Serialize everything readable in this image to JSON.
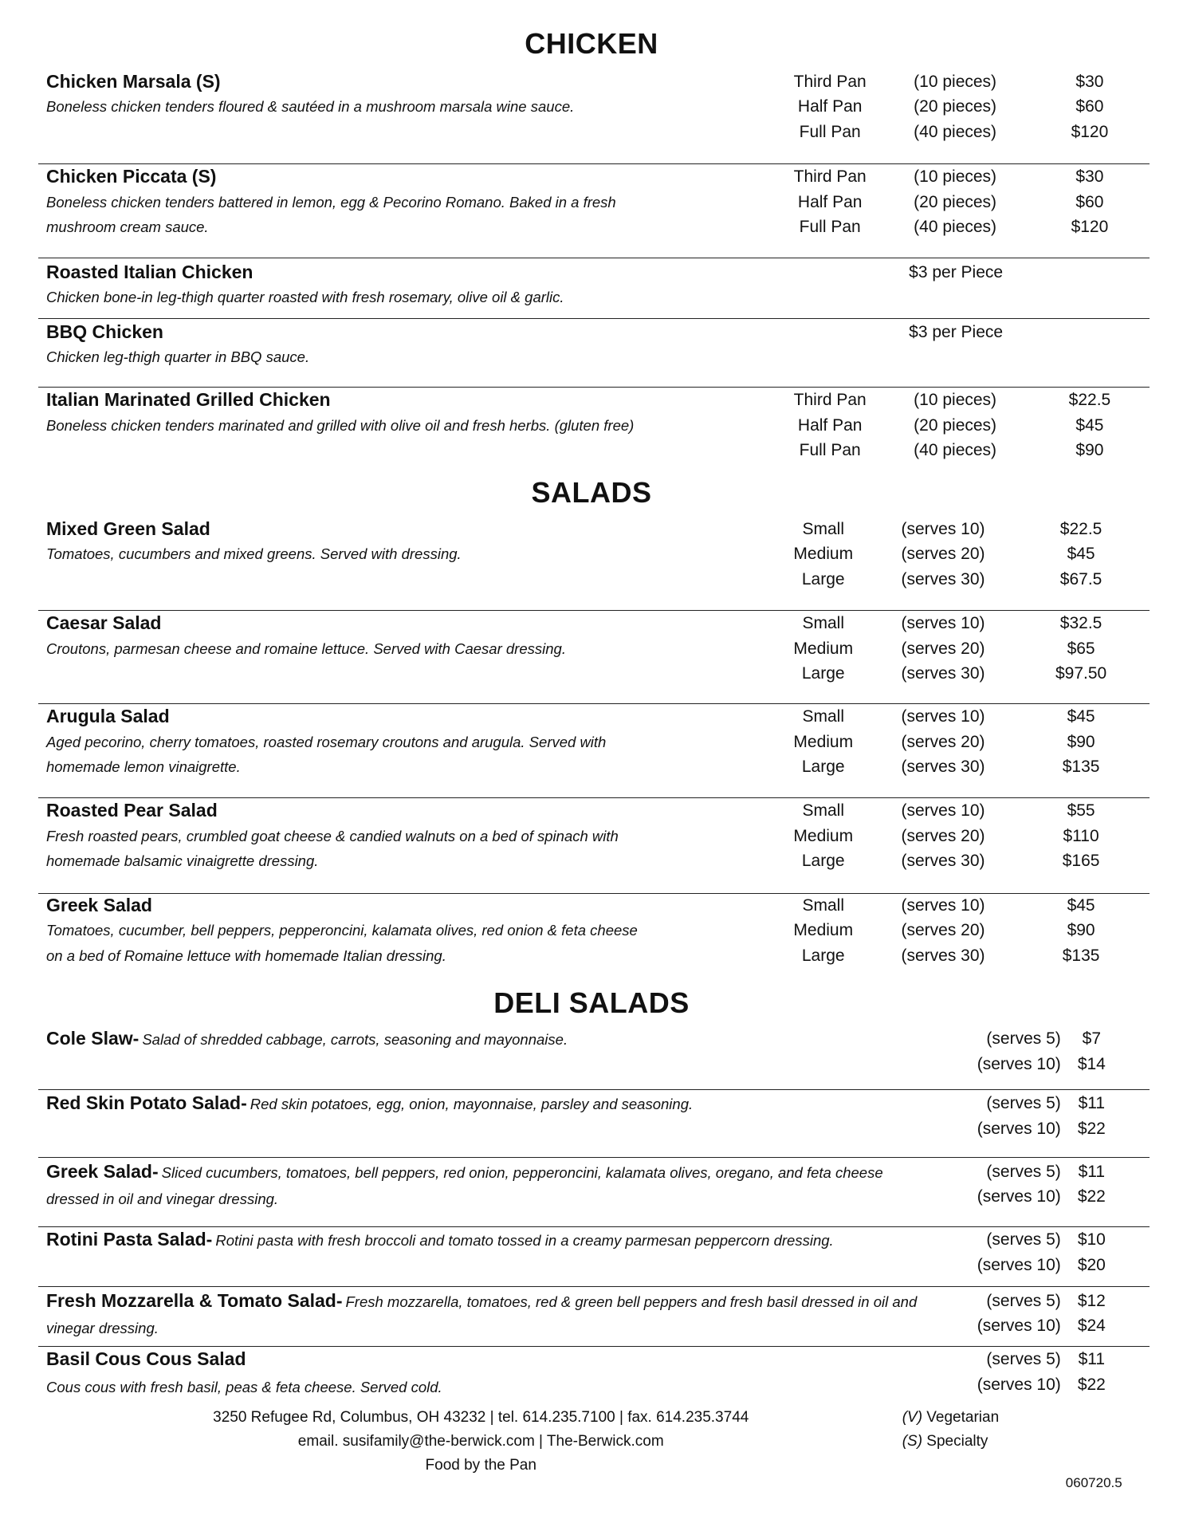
{
  "sections": [
    {
      "title": "CHICKEN",
      "items": [
        {
          "name": "Chicken Marsala (S)",
          "description": [
            "Boneless chicken tenders floured & sautéed in a mushroom marsala wine sauce."
          ],
          "sizes": [
            "Third Pan",
            "Half Pan",
            "Full Pan"
          ],
          "portions": [
            "(10 pieces)",
            "(20 pieces)",
            "(40 pieces)"
          ],
          "prices": [
            "$30",
            "$60",
            "$120"
          ]
        },
        {
          "name": "Chicken Piccata (S)",
          "description": [
            "Boneless chicken tenders battered in lemon, egg & Pecorino Romano.  Baked in a fresh",
            "mushroom cream sauce."
          ],
          "sizes": [
            "Third Pan",
            "Half Pan",
            "Full Pan"
          ],
          "portions": [
            "(10 pieces)",
            "(20 pieces)",
            "(40 pieces)"
          ],
          "prices": [
            "$30",
            "$60",
            "$120"
          ]
        },
        {
          "name": "Roasted Italian Chicken",
          "description": [
            "Chicken bone-in leg-thigh quarter roasted with fresh rosemary, olive oil & garlic."
          ],
          "flat_price": "$3 per Piece"
        },
        {
          "name": "BBQ Chicken",
          "description": [
            "Chicken leg-thigh quarter in BBQ sauce."
          ],
          "flat_price": "$3 per Piece"
        },
        {
          "name": "Italian Marinated Grilled Chicken",
          "description": [
            "Boneless chicken tenders marinated and grilled with olive oil and fresh herbs. (gluten free)"
          ],
          "sizes": [
            "Third Pan",
            "Half Pan",
            "Full Pan"
          ],
          "portions": [
            "(10 pieces)",
            "(20 pieces)",
            "(40 pieces)"
          ],
          "prices": [
            "$22.5",
            "$45",
            "$90"
          ]
        }
      ]
    },
    {
      "title": "SALADS",
      "items": [
        {
          "name": "Mixed Green Salad",
          "description": [
            "Tomatoes, cucumbers and mixed greens.  Served with dressing."
          ],
          "sizes": [
            "Small",
            "Medium",
            "Large"
          ],
          "portions": [
            "(serves 10)",
            "(serves 20)",
            "(serves 30)"
          ],
          "prices": [
            "$22.5",
            "$45",
            "$67.5"
          ]
        },
        {
          "name": "Caesar Salad",
          "description": [
            "Croutons, parmesan cheese and romaine lettuce.  Served with Caesar dressing."
          ],
          "sizes": [
            "Small",
            "Medium",
            "Large"
          ],
          "portions": [
            "(serves 10)",
            "(serves 20)",
            "(serves 30)"
          ],
          "prices": [
            "$32.5",
            "$65",
            "$97.50"
          ]
        },
        {
          "name": "Arugula Salad",
          "description": [
            "Aged pecorino, cherry tomatoes, roasted rosemary croutons and arugula. Served with",
            "homemade lemon vinaigrette."
          ],
          "sizes": [
            "Small",
            "Medium",
            "Large"
          ],
          "portions": [
            "(serves 10)",
            "(serves 20)",
            "(serves 30)"
          ],
          "prices": [
            "$45",
            "$90",
            "$135"
          ]
        },
        {
          "name": "Roasted Pear Salad",
          "description": [
            "Fresh roasted pears, crumbled goat cheese & candied walnuts on a bed of spinach with",
            "homemade balsamic vinaigrette dressing."
          ],
          "sizes": [
            "Small",
            "Medium",
            "Large"
          ],
          "portions": [
            "(serves 10)",
            "(serves 20)",
            "(serves 30)"
          ],
          "prices": [
            "$55",
            "$110",
            "$165"
          ]
        },
        {
          "name": "Greek Salad",
          "description": [
            "Tomatoes, cucumber, bell peppers, pepperoncini, kalamata olives, red onion & feta cheese",
            "on a bed of Romaine lettuce with homemade Italian dressing."
          ],
          "sizes": [
            "Small",
            "Medium",
            "Large"
          ],
          "portions": [
            "(serves 10)",
            "(serves 20)",
            "(serves 30)"
          ],
          "prices": [
            "$45",
            "$90",
            "$135"
          ]
        }
      ]
    },
    {
      "title": "DELI SALADS",
      "items": [
        {
          "name": "Cole Slaw-",
          "description": "Salad of shredded cabbage, carrots, seasoning and mayonnaise.",
          "portions": [
            "(serves 5)",
            "(serves 10)"
          ],
          "prices": [
            "$7",
            "$14"
          ]
        },
        {
          "name": "Red Skin Potato Salad-",
          "description": "Red skin potatoes, egg, onion, mayonnaise, parsley and seasoning.",
          "portions": [
            "(serves 5)",
            "(serves 10)"
          ],
          "prices": [
            "$11",
            "$22"
          ]
        },
        {
          "name": "Greek Salad-",
          "description": "Sliced cucumbers, tomatoes, bell peppers, red onion, pepperoncini, kalamata olives, oregano, and feta cheese dressed in oil and vinegar dressing.",
          "portions": [
            "(serves 5)",
            "(serves 10)"
          ],
          "prices": [
            "$11",
            "$22"
          ]
        },
        {
          "name": "Rotini Pasta Salad-",
          "description": "Rotini pasta with fresh broccoli and tomato tossed in a creamy parmesan peppercorn dressing.",
          "portions": [
            "(serves 5)",
            "(serves 10)"
          ],
          "prices": [
            "$10",
            "$20"
          ]
        },
        {
          "name": "Fresh Mozzarella & Tomato Salad-",
          "description": "Fresh mozzarella, tomatoes, red & green bell peppers and fresh basil dressed in oil and vinegar dressing.",
          "portions": [
            "(serves 5)",
            "(serves 10)"
          ],
          "prices": [
            "$12",
            "$24"
          ]
        },
        {
          "name": "Basil Cous Cous Salad",
          "description": "Cous cous with fresh basil, peas & feta cheese.  Served cold.",
          "portions": [
            "(serves 5)",
            "(serves 10)"
          ],
          "prices": [
            "$11",
            "$22"
          ],
          "desc_newline": true
        }
      ]
    }
  ],
  "footer": {
    "address": "3250 Refugee Rd, Columbus, OH 43232 | tel. 614.235.7100 | fax. 614.235.3744",
    "contact": "email. susifamily@the-berwick.com | The-Berwick.com",
    "tagline": "Food by the Pan",
    "legend": [
      {
        "code": "(V)",
        "label": " Vegetarian"
      },
      {
        "code": "(S)",
        "label": " Specialty"
      }
    ],
    "doc_code": "060720.5"
  }
}
